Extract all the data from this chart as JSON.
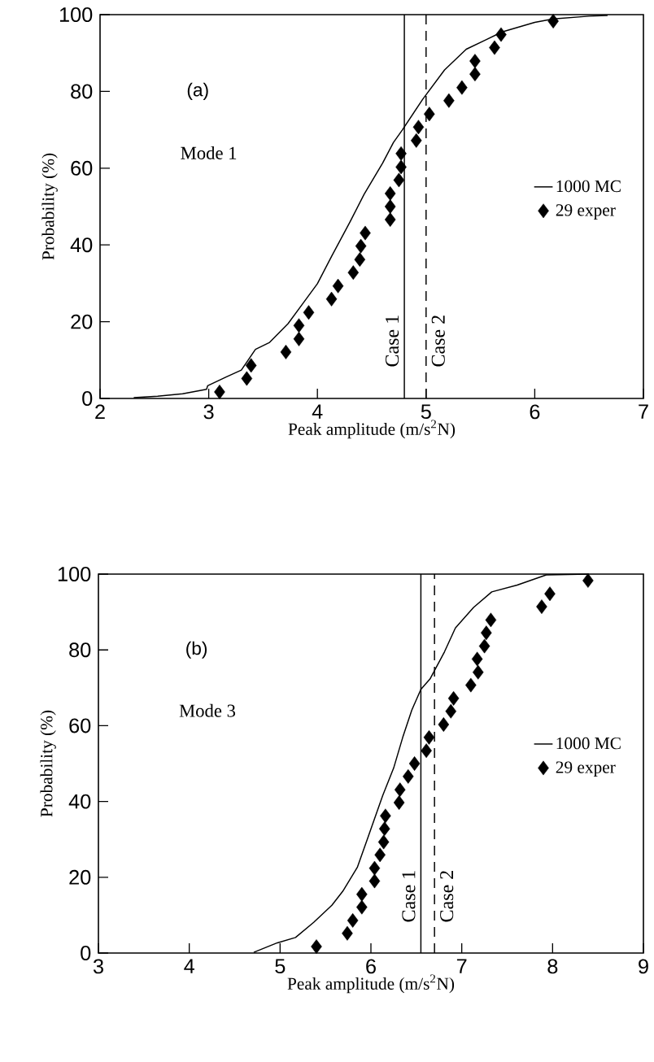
{
  "chart_data": [
    {
      "type": "line",
      "xlabel": "Peak amplitude (m/s$^{2}$N)",
      "ylabel": "Probability (%)",
      "annotations": [
        "(a)",
        "Mode 1"
      ],
      "xlim": [
        2,
        7
      ],
      "ylim": [
        0,
        100
      ],
      "xticks": [
        2,
        3,
        4,
        5,
        6,
        7
      ],
      "yticks": [
        0,
        20,
        40,
        60,
        80,
        100
      ],
      "legend": "right",
      "ref_lines": [
        {
          "axis": "x",
          "value": 4.8,
          "label": "Case 1",
          "line_style": "solid",
          "color": "#000000"
        },
        {
          "axis": "x",
          "value": 5.0,
          "label": "Case 2",
          "line_style": "dashed",
          "color": "#000000"
        }
      ],
      "series": [
        {
          "name": "1000 MC",
          "color": "#000000",
          "marker": "none",
          "line_style": "solid",
          "x": [
            2.31,
            2.53,
            2.76,
            2.98,
            2.99,
            3.16,
            3.3,
            3.43,
            3.56,
            3.73,
            3.86,
            4.0,
            4.13,
            4.3,
            4.43,
            4.6,
            4.7,
            4.78,
            4.97,
            5.17,
            5.37,
            5.54,
            5.7,
            6.0,
            6.17,
            6.5,
            6.67
          ],
          "values": [
            0.2,
            0.6,
            1.2,
            2.4,
            3.3,
            5.6,
            7.4,
            12.8,
            14.6,
            19.5,
            24.5,
            29.9,
            37,
            46,
            53.2,
            61.3,
            66.7,
            69.9,
            78,
            85.6,
            91,
            93.3,
            95.5,
            98,
            98.9,
            99.6,
            99.8
          ]
        },
        {
          "name": "29 exper",
          "type": "scatter",
          "color": "#000000",
          "marker": "diamond",
          "x": [
            3.1,
            3.35,
            3.39,
            3.71,
            3.83,
            3.83,
            3.92,
            4.13,
            4.19,
            4.33,
            4.39,
            4.4,
            4.44,
            4.67,
            4.67,
            4.67,
            4.75,
            4.77,
            4.77,
            4.91,
            4.93,
            5.03,
            5.21,
            5.33,
            5.45,
            5.45,
            5.63,
            5.69,
            6.17
          ],
          "values": [
            1.7,
            5.2,
            8.6,
            12.1,
            15.5,
            19.0,
            22.4,
            25.9,
            29.3,
            32.8,
            36.2,
            39.7,
            43.1,
            46.6,
            50.0,
            53.4,
            56.9,
            60.3,
            63.8,
            67.2,
            70.7,
            74.1,
            77.6,
            81.0,
            84.5,
            87.9,
            91.4,
            94.8,
            98.3
          ]
        }
      ]
    },
    {
      "type": "line",
      "xlabel": "Peak amplitude (m/s$^{2}$N)",
      "ylabel": "Probability (%)",
      "annotations": [
        "(b)",
        "Mode 3"
      ],
      "xlim": [
        3,
        9
      ],
      "ylim": [
        0,
        100
      ],
      "xticks": [
        3,
        4,
        5,
        6,
        7,
        8,
        9
      ],
      "yticks": [
        0,
        20,
        40,
        60,
        80,
        100
      ],
      "legend": "right",
      "ref_lines": [
        {
          "axis": "x",
          "value": 6.55,
          "label": "Case 1",
          "line_style": "solid",
          "color": "#000000"
        },
        {
          "axis": "x",
          "value": 6.7,
          "label": "Case 2",
          "line_style": "dashed",
          "color": "#000000"
        }
      ],
      "series": [
        {
          "name": "1000 MC",
          "color": "#000000",
          "marker": "none",
          "line_style": "solid",
          "x": [
            4.71,
            4.97,
            5.17,
            5.37,
            5.57,
            5.69,
            5.85,
            5.97,
            6.13,
            6.25,
            6.35,
            6.45,
            6.55,
            6.65,
            6.81,
            6.93,
            7.13,
            7.33,
            7.61,
            7.93,
            8.4
          ],
          "values": [
            0.2,
            2.7,
            4.1,
            8.1,
            12.6,
            16.3,
            22.6,
            30.7,
            41.6,
            48.8,
            56.9,
            64.1,
            69.6,
            72.3,
            79.5,
            85.8,
            91.2,
            95.3,
            97.1,
            99.8,
            100
          ]
        },
        {
          "name": "29 exper",
          "type": "scatter",
          "color": "#000000",
          "marker": "diamond",
          "x": [
            5.4,
            5.74,
            5.8,
            5.9,
            5.9,
            6.04,
            6.04,
            6.1,
            6.14,
            6.15,
            6.16,
            6.31,
            6.32,
            6.41,
            6.48,
            6.61,
            6.64,
            6.8,
            6.88,
            6.91,
            7.1,
            7.18,
            7.17,
            7.25,
            7.27,
            7.32,
            7.88,
            7.97,
            8.39
          ],
          "values": [
            1.7,
            5.2,
            8.6,
            12.1,
            15.5,
            19.0,
            22.4,
            25.9,
            29.3,
            32.8,
            36.2,
            39.7,
            43.1,
            46.6,
            50.0,
            53.4,
            56.9,
            60.3,
            63.8,
            67.2,
            70.7,
            74.1,
            77.6,
            81.0,
            84.5,
            87.9,
            91.4,
            94.8,
            98.3
          ]
        }
      ]
    }
  ]
}
